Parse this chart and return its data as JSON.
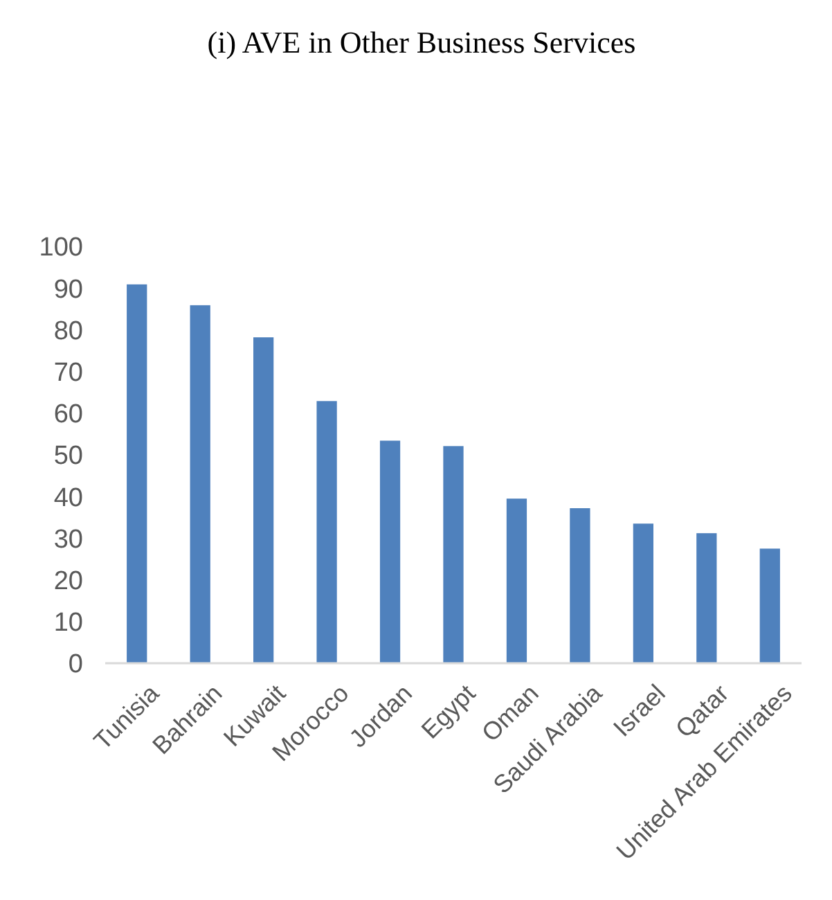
{
  "chart_data": {
    "type": "bar",
    "title": "(i) AVE in Other Business Services",
    "categories": [
      "Tunisia",
      "Bahrain",
      "Kuwait",
      "Morocco",
      "Jordan",
      "Egypt",
      "Oman",
      "Saudi Arabia",
      "Israel",
      "Qatar",
      "United Arab Emirates"
    ],
    "values": [
      90.9,
      85.9,
      78.2,
      62.9,
      53.4,
      52.1,
      39.5,
      37.2,
      33.5,
      31.2,
      27.5
    ],
    "color": "#4f81bd",
    "ylim": [
      0,
      100
    ],
    "yticks": [
      0,
      10,
      20,
      30,
      40,
      50,
      60,
      70,
      80,
      90,
      100
    ]
  }
}
